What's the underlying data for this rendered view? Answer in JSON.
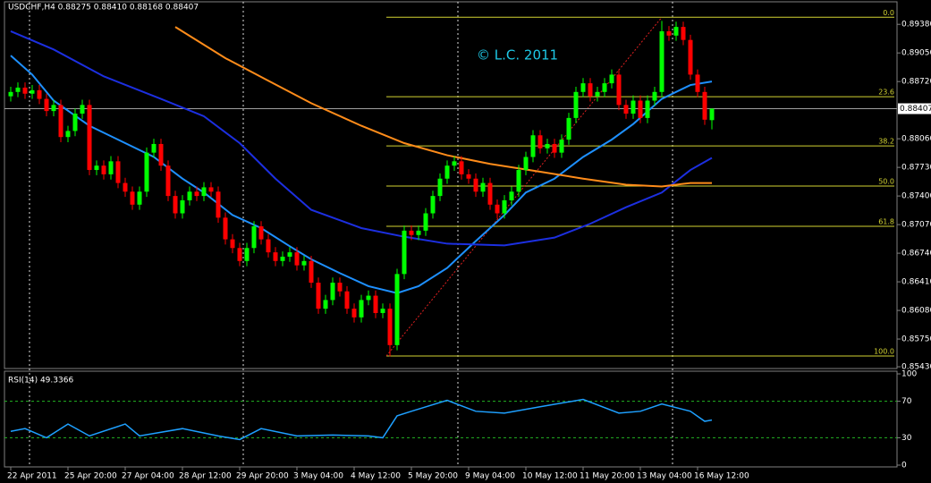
{
  "chart_data": [
    {
      "type": "candlestick",
      "title": "USDCHF,H4 0.88275 0.88410 0.88168 0.88407",
      "annotation": "© L.C. 2011",
      "categories": [
        "22 Apr 2011",
        null,
        null,
        null,
        null,
        null,
        null,
        null,
        "25 Apr 20:00",
        null,
        null,
        null,
        null,
        null,
        null,
        null,
        "27 Apr 04:00",
        null,
        null,
        null,
        null,
        null,
        null,
        null,
        "28 Apr 12:00",
        null,
        null,
        null,
        null,
        null,
        null,
        null,
        "29 Apr 20:00",
        null,
        null,
        null,
        null,
        null,
        null,
        null,
        "3 May 04:00",
        null,
        null,
        null,
        null,
        null,
        null,
        null,
        "4 May 12:00",
        null,
        null,
        null,
        null,
        null,
        null,
        null,
        "5 May 20:00",
        null,
        null,
        null,
        null,
        null,
        null,
        null,
        "9 May 04:00",
        null,
        null,
        null,
        null,
        null,
        null,
        null,
        "10 May 12:00",
        null,
        null,
        null,
        null,
        null,
        null,
        null,
        "11 May 20:00",
        null,
        null,
        null,
        null,
        null,
        null,
        null,
        "13 May 04:00",
        null,
        null,
        null,
        null,
        null,
        null,
        null,
        "16 May 12:00",
        null,
        null
      ],
      "open": [
        0.8855,
        0.886,
        0.8865,
        0.8858,
        0.8862,
        0.8852,
        0.8838,
        0.8845,
        0.8808,
        0.8815,
        0.8835,
        0.8845,
        0.877,
        0.8775,
        0.8765,
        0.878,
        0.8755,
        0.8745,
        0.873,
        0.8745,
        0.879,
        0.88,
        0.8775,
        0.874,
        0.872,
        0.8735,
        0.8745,
        0.874,
        0.875,
        0.8745,
        0.8715,
        0.869,
        0.868,
        0.8665,
        0.868,
        0.8705,
        0.869,
        0.8675,
        0.8665,
        0.867,
        0.8675,
        0.866,
        0.8665,
        0.864,
        0.861,
        0.862,
        0.864,
        0.863,
        0.861,
        0.86,
        0.862,
        0.8625,
        0.8605,
        0.861,
        0.8568,
        0.865,
        0.87,
        0.8695,
        0.87,
        0.872,
        0.874,
        0.876,
        0.8775,
        0.878,
        0.8765,
        0.876,
        0.8745,
        0.8755,
        0.873,
        0.872,
        0.8735,
        0.8745,
        0.877,
        0.8785,
        0.881,
        0.8795,
        0.88,
        0.879,
        0.8805,
        0.883,
        0.886,
        0.887,
        0.8855,
        0.886,
        0.887,
        0.888,
        0.8845,
        0.8835,
        0.885,
        0.883,
        0.885,
        0.886,
        0.893,
        0.8925,
        0.8935,
        0.892,
        0.888,
        0.886,
        0.88275
      ],
      "high": [
        0.8866,
        0.8871,
        0.8871,
        0.8868,
        0.8868,
        0.8858,
        0.8851,
        0.8851,
        0.8821,
        0.8841,
        0.8851,
        0.8851,
        0.8781,
        0.8781,
        0.8786,
        0.8786,
        0.8761,
        0.8751,
        0.8751,
        0.8796,
        0.8806,
        0.8806,
        0.8781,
        0.8746,
        0.8741,
        0.8751,
        0.8751,
        0.8756,
        0.8756,
        0.8751,
        0.8721,
        0.8696,
        0.8686,
        0.8686,
        0.8711,
        0.8711,
        0.8696,
        0.8681,
        0.8676,
        0.8681,
        0.8681,
        0.8671,
        0.8671,
        0.8646,
        0.8626,
        0.8646,
        0.8646,
        0.8636,
        0.8616,
        0.8626,
        0.8631,
        0.8631,
        0.8616,
        0.8616,
        0.8656,
        0.8706,
        0.8706,
        0.8706,
        0.8726,
        0.8746,
        0.8766,
        0.8781,
        0.8786,
        0.8786,
        0.8771,
        0.8766,
        0.8761,
        0.8761,
        0.8736,
        0.8741,
        0.8751,
        0.8776,
        0.8791,
        0.8816,
        0.8816,
        0.8806,
        0.8806,
        0.8811,
        0.8836,
        0.8866,
        0.8876,
        0.8876,
        0.8866,
        0.8876,
        0.8886,
        0.8886,
        0.8851,
        0.8856,
        0.8856,
        0.8856,
        0.8866,
        0.8942,
        0.8936,
        0.8941,
        0.8941,
        0.8926,
        0.8886,
        0.8866,
        0.8841
      ],
      "low": [
        0.8849,
        0.8854,
        0.8852,
        0.8852,
        0.8846,
        0.8832,
        0.8832,
        0.8802,
        0.8802,
        0.8809,
        0.8829,
        0.8764,
        0.8764,
        0.8759,
        0.8759,
        0.8749,
        0.8739,
        0.8724,
        0.8724,
        0.8739,
        0.8784,
        0.8769,
        0.8734,
        0.8714,
        0.8714,
        0.8729,
        0.8734,
        0.8734,
        0.8739,
        0.8709,
        0.8684,
        0.8674,
        0.8659,
        0.8659,
        0.8674,
        0.8684,
        0.8669,
        0.8659,
        0.8659,
        0.8664,
        0.8654,
        0.8654,
        0.8634,
        0.8604,
        0.8604,
        0.8614,
        0.8624,
        0.8604,
        0.8594,
        0.8594,
        0.8614,
        0.8599,
        0.8599,
        0.8555,
        0.8562,
        0.8644,
        0.8689,
        0.8689,
        0.8694,
        0.8714,
        0.8734,
        0.8754,
        0.8769,
        0.8759,
        0.8754,
        0.8739,
        0.8739,
        0.8724,
        0.8714,
        0.8714,
        0.8729,
        0.8739,
        0.8764,
        0.8779,
        0.8789,
        0.8789,
        0.8784,
        0.8784,
        0.8799,
        0.8824,
        0.8854,
        0.8849,
        0.8849,
        0.8854,
        0.8864,
        0.8839,
        0.8829,
        0.8829,
        0.8824,
        0.8824,
        0.8844,
        0.8854,
        0.8919,
        0.8919,
        0.8914,
        0.8874,
        0.8854,
        0.8822,
        0.88168
      ],
      "close": [
        0.886,
        0.8865,
        0.8858,
        0.8862,
        0.8852,
        0.8838,
        0.8845,
        0.8808,
        0.8815,
        0.8835,
        0.8845,
        0.877,
        0.8775,
        0.8765,
        0.878,
        0.8755,
        0.8745,
        0.873,
        0.8745,
        0.879,
        0.88,
        0.8775,
        0.874,
        0.872,
        0.8735,
        0.8745,
        0.874,
        0.875,
        0.8745,
        0.8715,
        0.869,
        0.868,
        0.8665,
        0.868,
        0.8705,
        0.869,
        0.8675,
        0.8665,
        0.867,
        0.8675,
        0.866,
        0.8665,
        0.864,
        0.861,
        0.862,
        0.864,
        0.863,
        0.861,
        0.86,
        0.862,
        0.8625,
        0.8605,
        0.861,
        0.8568,
        0.865,
        0.87,
        0.8695,
        0.87,
        0.872,
        0.874,
        0.876,
        0.8775,
        0.878,
        0.8765,
        0.876,
        0.8745,
        0.8755,
        0.873,
        0.872,
        0.8735,
        0.8745,
        0.877,
        0.8785,
        0.881,
        0.8795,
        0.88,
        0.879,
        0.8805,
        0.883,
        0.886,
        0.887,
        0.8855,
        0.886,
        0.887,
        0.888,
        0.8845,
        0.8835,
        0.885,
        0.883,
        0.885,
        0.886,
        0.893,
        0.8925,
        0.8935,
        0.892,
        0.888,
        0.886,
        0.8828,
        0.88407
      ],
      "up_color": "#00ff00",
      "down_color": "#ff0000",
      "overlays": [
        {
          "color": "#1e90ff",
          "x": [
            0,
            3,
            6,
            11,
            16,
            20,
            24,
            27,
            31,
            35,
            39,
            42,
            46,
            50,
            54,
            57,
            61,
            65,
            69,
            72,
            76,
            80,
            84,
            87,
            91,
            95,
            98
          ],
          "values": [
            0.8902,
            0.888,
            0.885,
            0.8821,
            0.8801,
            0.8785,
            0.876,
            0.8744,
            0.8718,
            0.8703,
            0.8682,
            0.8667,
            0.8651,
            0.8636,
            0.8628,
            0.8636,
            0.8657,
            0.8688,
            0.8718,
            0.8744,
            0.876,
            0.8785,
            0.8805,
            0.8823,
            0.8852,
            0.8868,
            0.8872
          ]
        },
        {
          "color": "#1c2fe0",
          "x": [
            0,
            6,
            13,
            21,
            27,
            32,
            37,
            42,
            49,
            55,
            61,
            69,
            76,
            81,
            86,
            91,
            95,
            98
          ],
          "values": [
            0.893,
            0.8909,
            0.8878,
            0.8852,
            0.8832,
            0.8801,
            0.876,
            0.8724,
            0.8703,
            0.8693,
            0.8685,
            0.8683,
            0.8692,
            0.8708,
            0.8727,
            0.8744,
            0.877,
            0.8784
          ]
        },
        {
          "color": "#ff8c1a",
          "x": [
            23,
            30,
            36,
            42,
            49,
            55,
            61,
            67,
            74,
            80,
            86,
            91,
            95,
            98
          ],
          "values": [
            0.8935,
            0.8899,
            0.8873,
            0.8847,
            0.8821,
            0.8801,
            0.8787,
            0.8777,
            0.8768,
            0.876,
            0.8753,
            0.8751,
            0.8755,
            0.8755
          ]
        }
      ],
      "fib_levels": [
        {
          "label": "0.0",
          "price": 0.89462
        },
        {
          "label": "23.6",
          "price": 0.88545
        },
        {
          "label": "38.2",
          "price": 0.87978
        },
        {
          "label": "50.0",
          "price": 0.87515
        },
        {
          "label": "61.8",
          "price": 0.87051
        },
        {
          "label": "100.0",
          "price": 0.85555
        }
      ],
      "fib_color": "#d2d232",
      "current_price": 0.88407,
      "ylim": [
        0.8541,
        0.8964
      ],
      "yticks": [
        {
          "value": 0.8938,
          "label": "0.89380"
        },
        {
          "value": 0.8905,
          "label": "0.89050"
        },
        {
          "value": 0.8872,
          "label": "0.88720"
        },
        {
          "value": 0.8806,
          "label": "0.88060"
        },
        {
          "value": 0.8773,
          "label": "0.87730"
        },
        {
          "value": 0.874,
          "label": "0.87400"
        },
        {
          "value": 0.8707,
          "label": "0.87070"
        },
        {
          "value": 0.8674,
          "label": "0.86740"
        },
        {
          "value": 0.8641,
          "label": "0.86410"
        },
        {
          "value": 0.8608,
          "label": "0.86080"
        },
        {
          "value": 0.8575,
          "label": "0.85750"
        },
        {
          "value": 0.8543,
          "label": "0.85430"
        }
      ]
    },
    {
      "type": "line",
      "title": "RSI(14) 49.3366",
      "series": [
        {
          "color": "#1ea0ff",
          "x": [
            0,
            2,
            5,
            8,
            11,
            16,
            18,
            24,
            29,
            32,
            35,
            40,
            45,
            50,
            52,
            54,
            56,
            61,
            65,
            69,
            74,
            80,
            85,
            88,
            91,
            95,
            97,
            98
          ],
          "values": [
            37,
            40,
            30,
            45,
            32,
            45,
            32,
            40,
            32,
            28,
            40,
            32,
            33,
            32,
            30,
            54,
            59,
            71,
            59,
            57,
            64,
            72,
            57,
            59,
            67,
            59,
            48,
            49.3366
          ]
        }
      ],
      "levels": [
        70,
        30
      ],
      "level_color": "#22b422",
      "ylim": [
        0,
        100
      ],
      "yticks": [
        100,
        70,
        30,
        0
      ]
    }
  ]
}
